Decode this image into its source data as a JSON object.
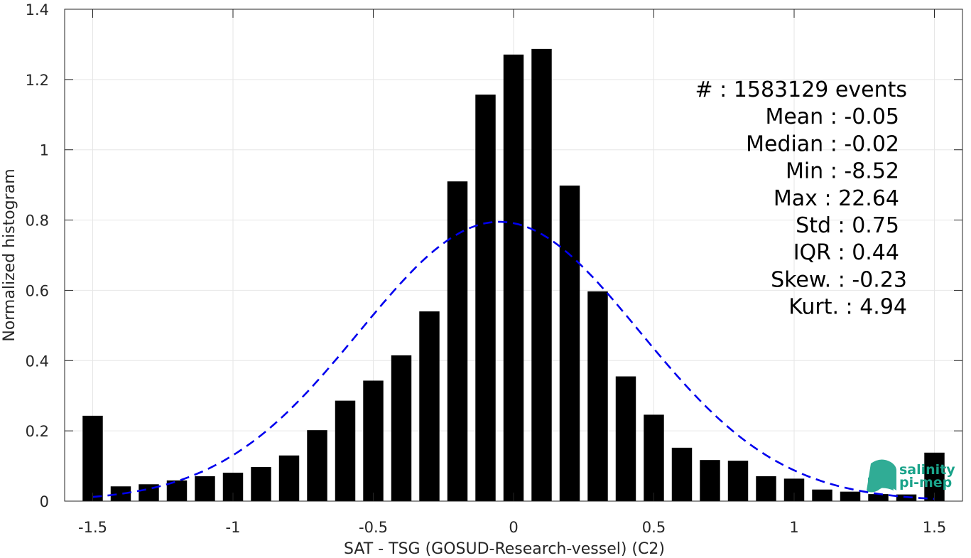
{
  "chart_data": {
    "type": "bar",
    "xlabel": "SAT - TSG (GOSUD-Research-vessel) (C2)",
    "ylabel": "Normalized histogram",
    "xlim": [
      -1.6,
      1.6
    ],
    "ylim": [
      0,
      1.4
    ],
    "x_ticks": [
      -1.5,
      -1,
      -0.5,
      0,
      0.5,
      1,
      1.5
    ],
    "x_tick_labels": [
      "-1.5",
      "-1",
      "-0.5",
      "0",
      "0.5",
      "1",
      "1.5"
    ],
    "y_ticks": [
      0,
      0.2,
      0.4,
      0.6,
      0.8,
      1,
      1.2,
      1.4
    ],
    "y_tick_labels": [
      "0",
      "0.2",
      "0.4",
      "0.6",
      "0.8",
      "1",
      "1.2",
      "1.4"
    ],
    "grid": true,
    "bin_width": 0.1,
    "x": [
      -1.5,
      -1.4,
      -1.3,
      -1.2,
      -1.1,
      -1.0,
      -0.9,
      -0.8,
      -0.7,
      -0.6,
      -0.5,
      -0.4,
      -0.3,
      -0.2,
      -0.1,
      0.0,
      0.1,
      0.2,
      0.3,
      0.4,
      0.5,
      0.6,
      0.7,
      0.8,
      0.9,
      1.0,
      1.1,
      1.2,
      1.3,
      1.4,
      1.5
    ],
    "values": [
      0.243,
      0.042,
      0.048,
      0.059,
      0.071,
      0.081,
      0.097,
      0.13,
      0.202,
      0.286,
      0.343,
      0.415,
      0.54,
      0.91,
      1.157,
      1.271,
      1.287,
      0.898,
      0.597,
      0.355,
      0.246,
      0.152,
      0.117,
      0.115,
      0.071,
      0.064,
      0.033,
      0.027,
      0.02,
      0.019,
      0.138
    ],
    "bar_color": "#000000",
    "fit_curve": {
      "type": "gaussian",
      "mean": -0.05,
      "std": 0.5,
      "peak": 0.795,
      "x_range": [
        -1.5,
        1.5
      ],
      "color": "#0000ee",
      "style": "dashed"
    },
    "stats": [
      "#  : 1583129 events",
      "Mean : -0.05",
      "Median : -0.02",
      "Min : -8.52",
      "Max : 22.64",
      "Std : 0.75",
      "IQR : 0.44",
      "Skew. : -0.23",
      "Kurt. : 4.94"
    ]
  },
  "logo": {
    "line1": "salinity",
    "line2": "pi-mep",
    "color": "#1aa38a"
  }
}
